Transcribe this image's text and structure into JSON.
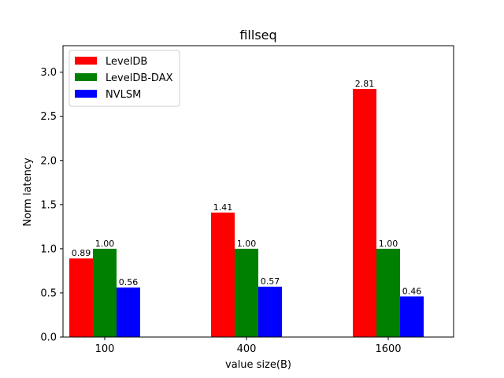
{
  "chart_data": {
    "type": "bar",
    "title": "fillseq",
    "xlabel": "value size(B)",
    "ylabel": "Norm latency",
    "categories": [
      "100",
      "400",
      "1600"
    ],
    "series": [
      {
        "name": "LevelDB",
        "color": "#ff0000",
        "values": [
          0.89,
          1.41,
          2.81
        ],
        "labels": [
          "0.89",
          "1.41",
          "2.81"
        ]
      },
      {
        "name": "LevelDB-DAX",
        "color": "#008000",
        "values": [
          1.0,
          1.0,
          1.0
        ],
        "labels": [
          "1.00",
          "1.00",
          "1.00"
        ]
      },
      {
        "name": "NVLSM",
        "color": "#0000ff",
        "values": [
          0.56,
          0.57,
          0.46
        ],
        "labels": [
          "0.56",
          "0.57",
          "0.46"
        ]
      }
    ],
    "ylim": [
      0,
      3.3
    ],
    "yticks": [
      0.0,
      0.5,
      1.0,
      1.5,
      2.0,
      2.5,
      3.0
    ],
    "ytick_labels": [
      "0.0",
      "0.5",
      "1.0",
      "1.5",
      "2.0",
      "2.5",
      "3.0"
    ],
    "grid": false,
    "legend_position": "upper-left"
  }
}
